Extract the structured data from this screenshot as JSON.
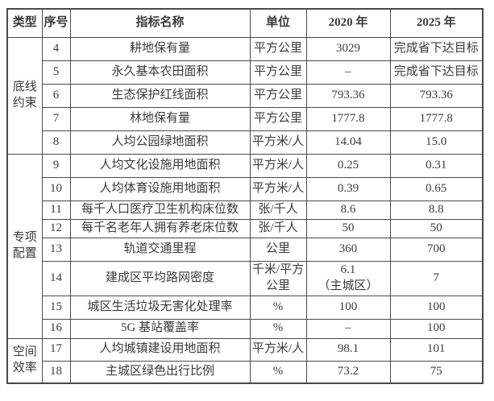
{
  "table": {
    "headers": [
      "类型",
      "序号",
      "指标名称",
      "单位",
      "2020 年",
      "2025 年"
    ],
    "border_color": "#4a4a4a",
    "text_color": "#3b3b3b",
    "groups": [
      {
        "category": "底线\n约束",
        "rows": [
          {
            "no": "4",
            "name": "耕地保有量",
            "unit": "平方公里",
            "y2020": "3029",
            "y2025": "完成省下达目标"
          },
          {
            "no": "5",
            "name": "永久基本农田面积",
            "unit": "平方公里",
            "y2020": "–",
            "y2025": "完成省下达目标"
          },
          {
            "no": "6",
            "name": "生态保护红线面积",
            "unit": "平方公里",
            "y2020": "793.36",
            "y2025": "793.36"
          },
          {
            "no": "7",
            "name": "林地保有量",
            "unit": "平方公里",
            "y2020": "1777.8",
            "y2025": "1777.8"
          },
          {
            "no": "8",
            "name": "人均公园绿地面积",
            "unit": "平方米/人",
            "y2020": "14.04",
            "y2025": "15.0"
          }
        ]
      },
      {
        "category": "专项\n配置",
        "rows": [
          {
            "no": "9",
            "name": "人均文化设施用地面积",
            "unit": "平方米/人",
            "y2020": "0.25",
            "y2025": "0.31"
          },
          {
            "no": "10",
            "name": "人均体育设施用地面积",
            "unit": "平方米/人",
            "y2020": "0.39",
            "y2025": "0.65"
          },
          {
            "no": "11",
            "name": "每千人口医疗卫生机构床位数",
            "unit": "张/千人",
            "y2020": "8.6",
            "y2025": "8.8"
          },
          {
            "no": "12",
            "name": "每千名老年人拥有养老床位数",
            "unit": "张/千人",
            "y2020": "50",
            "y2025": "50"
          },
          {
            "no": "13",
            "name": "轨道交通里程",
            "unit": "公里",
            "y2020": "360",
            "y2025": "700"
          },
          {
            "no": "14",
            "name": "建成区平均路网密度",
            "unit": "千米/平方\n公里",
            "y2020": "6.1\n（主城区）",
            "y2025": "7"
          },
          {
            "no": "15",
            "name": "城区生活垃圾无害化处理率",
            "unit": "%",
            "y2020": "100",
            "y2025": "100"
          },
          {
            "no": "16",
            "name": "5G 基站覆盖率",
            "unit": "%",
            "y2020": "–",
            "y2025": "100"
          }
        ]
      },
      {
        "category": "空间\n效率",
        "rows": [
          {
            "no": "17",
            "name": "人均城镇建设用地面积",
            "unit": "平方米/人",
            "y2020": "98.1",
            "y2025": "101"
          },
          {
            "no": "18",
            "name": "主城区绿色出行比例",
            "unit": "%",
            "y2020": "73.2",
            "y2025": "75"
          }
        ]
      }
    ]
  }
}
